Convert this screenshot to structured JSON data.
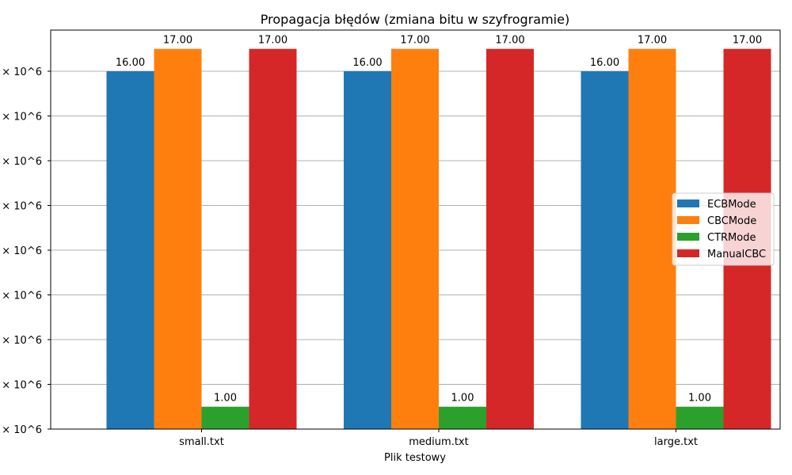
{
  "chart_data": {
    "type": "bar",
    "title": "Propagacja błędów (zmiana bitu w szyfrogramie)",
    "xlabel": "Plik testowy",
    "ylabel": "",
    "categories": [
      "small.txt",
      "medium.txt",
      "large.txt"
    ],
    "series": [
      {
        "name": "ECBMode",
        "color": "#1f77b4",
        "values": [
          16,
          16,
          16
        ],
        "labels": [
          "16.00",
          "16.00",
          "16.00"
        ]
      },
      {
        "name": "CBCMode",
        "color": "#ff7f0e",
        "values": [
          17,
          17,
          17
        ],
        "labels": [
          "17.00",
          "17.00",
          "17.00"
        ]
      },
      {
        "name": "CTRMode",
        "color": "#2ca02c",
        "values": [
          1,
          1,
          1
        ],
        "labels": [
          "1.00",
          "1.00",
          "1.00"
        ]
      },
      {
        "name": "ManualCBC",
        "color": "#d62728",
        "values": [
          17,
          17,
          17
        ],
        "labels": [
          "17.00",
          "17.00",
          "17.00"
        ]
      }
    ],
    "ylim": [
      0,
      17.84
    ],
    "ytick_values": [
      0,
      2,
      4,
      6,
      8,
      10,
      12,
      14,
      16
    ],
    "ytick_labels": [
      "× 10^6",
      "× 10^6",
      "× 10^6",
      "× 10^6",
      "× 10^6",
      "× 10^6",
      "× 10^6",
      "× 10^6",
      "× 10^6"
    ],
    "grid": "horizontal",
    "legend_position": "center-right"
  }
}
